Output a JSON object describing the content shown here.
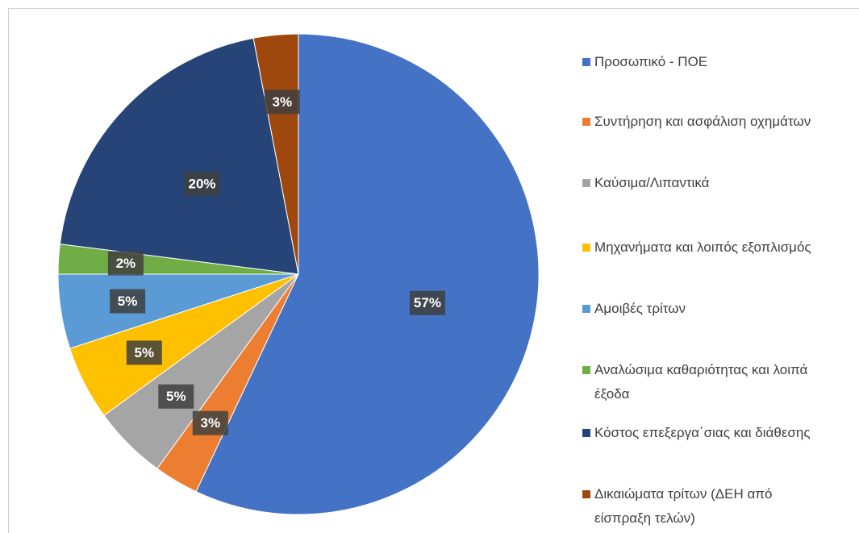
{
  "chart_data": {
    "type": "pie",
    "categories": [
      "Προσωπικό  - ΠΟΕ",
      "Συντήρηση και ασφάλιση οχημάτων",
      "Καύσιμα/Λιπαντικά",
      "Μηχανήματα και λοιπός εξοπλισμός",
      "Αμοιβές τρίτων",
      "Αναλώσιμα καθαριότητας και λοιπά έξοδα",
      "Κόστος επεξεργα΄σιας και διάθεσης",
      "Δικαιώματα τρίτων (ΔΕΗ από είσπραξη τελών)"
    ],
    "values": [
      57,
      3,
      5,
      5,
      5,
      2,
      20,
      3
    ],
    "value_labels": [
      "57%",
      "3%",
      "5%",
      "5%",
      "5%",
      "2%",
      "20%",
      "3%"
    ],
    "colors": [
      "#4472c4",
      "#ed7d31",
      "#a5a5a5",
      "#ffc000",
      "#5b9bd5",
      "#70ad47",
      "#264478",
      "#9e480e"
    ],
    "legend": "right"
  }
}
